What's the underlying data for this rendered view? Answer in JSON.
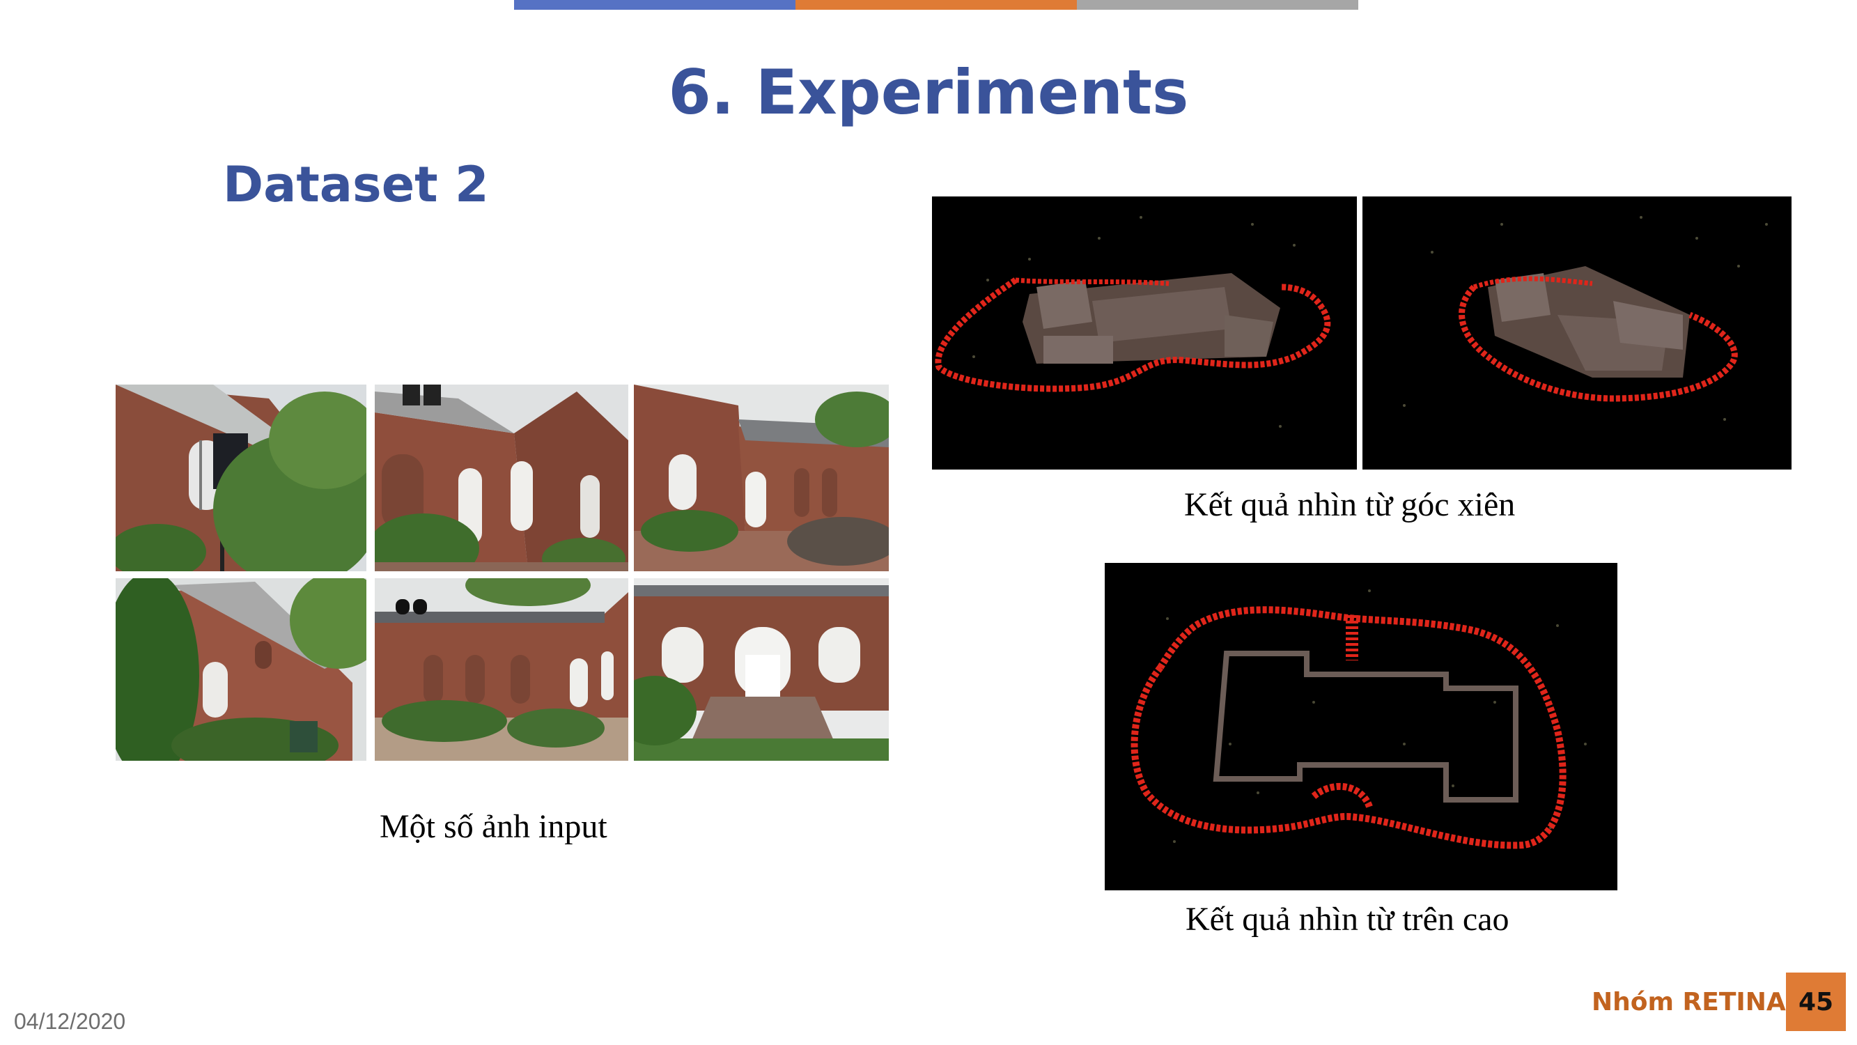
{
  "slide": {
    "title": "6. Experiments",
    "subtitle": "Dataset 2"
  },
  "captions": {
    "input_images": "Một số ảnh input",
    "oblique_view": "Kết quả nhìn từ góc xiên",
    "top_view": "Kết quả nhìn từ trên cao"
  },
  "footer": {
    "date": "04/12/2020",
    "group": "Nhóm RETINA",
    "page_number": "45"
  },
  "colors": {
    "title": "#3a539a",
    "accent_blue": "#5672c4",
    "accent_orange": "#df7b35",
    "accent_gray": "#a6a6a6",
    "camera_path": "#e0251a"
  },
  "images": {
    "input_photos": [
      "brick-building-photo-1",
      "brick-building-photo-2",
      "brick-building-photo-3",
      "brick-building-photo-4",
      "brick-building-photo-5",
      "brick-building-photo-6"
    ],
    "renders": [
      "point-cloud-oblique-1",
      "point-cloud-oblique-2",
      "point-cloud-top-view"
    ]
  }
}
